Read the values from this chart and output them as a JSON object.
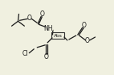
{
  "background_color": "#f0f0e0",
  "bond_color": "#1a1a1a",
  "text_color": "#1a1a1a",
  "abs_label": "Abs",
  "nh_label": "NH",
  "cl_label": "Cl",
  "o_label": "O",
  "lw": 0.9,
  "fs": 5.5,
  "fs_abs": 4.2
}
